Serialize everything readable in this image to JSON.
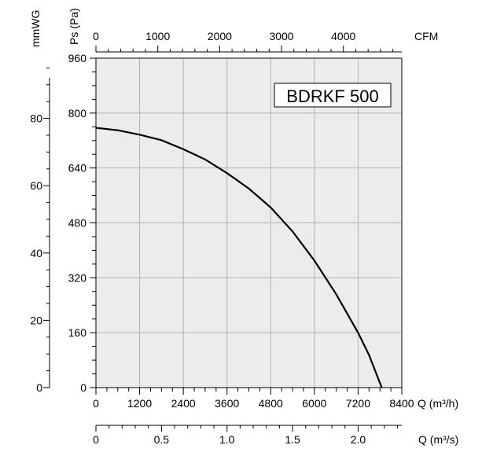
{
  "chart_data": {
    "type": "line",
    "title": "BDRKF 500",
    "series": [
      {
        "values": [
          {
            "x": 0,
            "y": 757
          },
          {
            "x": 600,
            "y": 750
          },
          {
            "x": 1200,
            "y": 737
          },
          {
            "x": 1800,
            "y": 721
          },
          {
            "x": 2400,
            "y": 695
          },
          {
            "x": 3000,
            "y": 665
          },
          {
            "x": 3600,
            "y": 625
          },
          {
            "x": 4200,
            "y": 580
          },
          {
            "x": 4800,
            "y": 525
          },
          {
            "x": 5400,
            "y": 455
          },
          {
            "x": 6000,
            "y": 370
          },
          {
            "x": 6600,
            "y": 272
          },
          {
            "x": 7200,
            "y": 160
          },
          {
            "x": 7500,
            "y": 95
          },
          {
            "x": 7850,
            "y": 0
          }
        ]
      }
    ],
    "axes": {
      "primary_y": {
        "label": "Ps (Pa)",
        "range": [
          0,
          960
        ],
        "ticks": [
          "0",
          "160",
          "320",
          "480",
          "640",
          "800",
          "960"
        ]
      },
      "secondary_y": {
        "label": "mmWG",
        "range_mmwg": [
          0,
          97.9
        ],
        "ticks": [
          "0",
          "20",
          "40",
          "60",
          "80"
        ]
      },
      "bottom_x": {
        "label": "Q (m³/h)",
        "range": [
          0,
          8400
        ],
        "ticks": [
          "0",
          "1200",
          "2400",
          "3600",
          "4800",
          "6000",
          "7200",
          "8400"
        ]
      },
      "top_x": {
        "label": "CFM",
        "range_cfm": [
          0,
          4944
        ],
        "ticks": [
          "0",
          "1000",
          "2000",
          "3000",
          "4000"
        ]
      },
      "second_bottom_x": {
        "label": "Q (m³/s)",
        "range_m3s": [
          0,
          2.333
        ],
        "ticks": [
          "0",
          "0.5",
          "1.0",
          "1.5",
          "2.0"
        ]
      }
    },
    "grid": true,
    "colors": {
      "plot_background": "#ececec",
      "grid": "#b3b3b3",
      "curve": "#000000",
      "axis": "#000000"
    }
  }
}
